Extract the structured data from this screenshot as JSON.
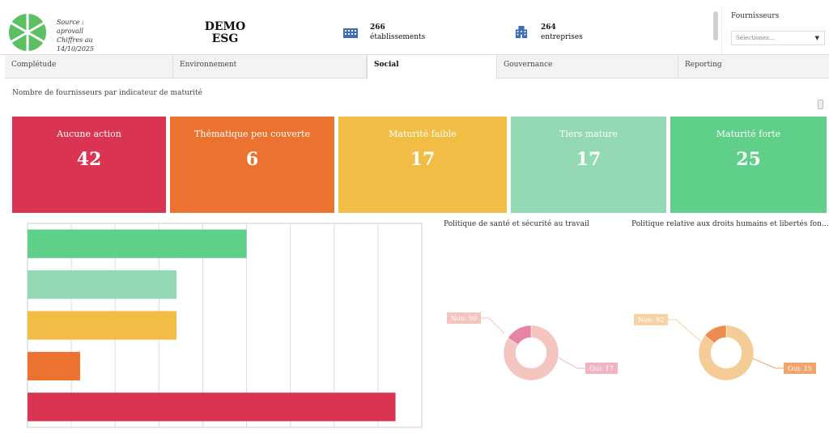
{
  "header": {
    "source_lines": [
      "Source :",
      "aprovall",
      "Chiffres au",
      "14/10/2025"
    ],
    "brand_line1": "DEMO",
    "brand_line2": "ESG",
    "kpis": [
      {
        "value": "266",
        "label": "établissements",
        "icon": "building-icon"
      },
      {
        "value": "264",
        "label": "entreprises",
        "icon": "office-icon"
      }
    ],
    "filter": {
      "label": "Fournisseurs",
      "placeholder": "Sélectionez..."
    }
  },
  "tabs": [
    {
      "label": "Complétude",
      "active": false
    },
    {
      "label": "Environnement",
      "active": false
    },
    {
      "label": "Social",
      "active": true
    },
    {
      "label": "Gouvernance",
      "active": false
    },
    {
      "label": "Reporting",
      "active": false
    }
  ],
  "section_title": "Nombre de fournisseurs par indicateur de maturité",
  "cards": [
    {
      "title": "Aucune action",
      "value": "42",
      "color": "#d93552"
    },
    {
      "title": "Thématique peu couverte",
      "value": "6",
      "color": "#ec7230"
    },
    {
      "title": "Maturité faible",
      "value": "17",
      "color": "#f2bd45"
    },
    {
      "title": "Tiers mature",
      "value": "17",
      "color": "#93dab4"
    },
    {
      "title": "Maturité forte",
      "value": "25",
      "color": "#5fcf89"
    }
  ],
  "chart_data": [
    {
      "type": "bar",
      "orientation": "horizontal",
      "categories": [
        "Maturité forte",
        "Tiers mature",
        "Maturité faible",
        "Thématique peu couverte",
        "Aucune action"
      ],
      "values": [
        25,
        17,
        17,
        6,
        42
      ],
      "colors": [
        "#5fcf89",
        "#93dab4",
        "#f2bd45",
        "#ec7230",
        "#d93552"
      ],
      "xlim": [
        0,
        45
      ],
      "grid": true,
      "title": "",
      "xlabel": "",
      "ylabel": ""
    },
    {
      "type": "pie",
      "donut": true,
      "title": "Politique de santé et sécurité au travail",
      "slices": [
        {
          "label": "Non: 90",
          "value": 90,
          "color": "#f4c4bf",
          "label_color": "#f4c4bf"
        },
        {
          "label": "Oui: 17",
          "value": 17,
          "color": "#e884a3",
          "label_color": "#f2b3c4"
        }
      ]
    },
    {
      "type": "pie",
      "donut": true,
      "title": "Politique relative aux droits humains et libertés fon…",
      "slices": [
        {
          "label": "Non: 92",
          "value": 92,
          "color": "#f5cc95",
          "label_color": "#f5d3a5"
        },
        {
          "label": "Oui: 15",
          "value": 15,
          "color": "#ee8c4e",
          "label_color": "#f1a56c"
        }
      ]
    }
  ]
}
